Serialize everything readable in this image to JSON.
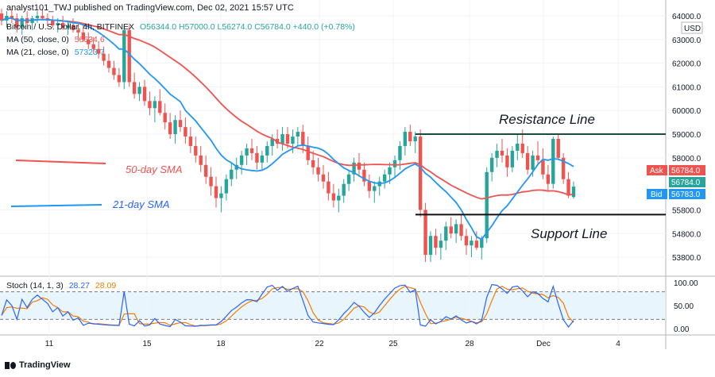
{
  "header": {
    "publisher_line": "analyst101_TWJ published on TradingView.com, Dec 02, 2021 15:57 UTC"
  },
  "legend": {
    "symbol_label": "Bitcoin / U.S. Dollar, 4h, BITFINEX",
    "ohlc": "O56344.0  H57000.0  L56274.0  C56784.0  +440.0 (+0.78%)",
    "ma50_label": "MA (50, close, 0)",
    "ma50_value": "56634.6",
    "ma21_label": "MA (21, close, 0)",
    "ma21_value": "57323.7",
    "stoch_label": "Stoch (14, 1, 3)",
    "stoch_k": "28.27",
    "stoch_d": "28.09"
  },
  "price_axis": {
    "currency": "USD",
    "ticks": [
      "64000.0",
      "63000.0",
      "62000.0",
      "61000.0",
      "60000.0",
      "59000.0",
      "58000.0",
      "56784.0",
      "55800.0",
      "54800.0",
      "53800.0"
    ],
    "ask_label": "Ask",
    "ask_value": "56784.0",
    "last_value": "56784.0",
    "bid_label": "Bid",
    "bid_value": "56783.0"
  },
  "stoch_axis": {
    "ticks": [
      "100.00",
      "50.00",
      "0.00"
    ]
  },
  "time_axis": {
    "ticks": [
      "11",
      "15",
      "18",
      "22",
      "25",
      "28",
      "Dec",
      "4"
    ]
  },
  "annotations": {
    "resistance": "Resistance Line",
    "support": "Support Line",
    "sma50": "50-day SMA",
    "sma21": "21-day SMA"
  },
  "footer": {
    "brand": "TradingView"
  },
  "colors": {
    "up": "#26a69a",
    "down": "#ef5350",
    "ma50": "#ef5350",
    "ma21": "#2196f3",
    "stoch_k": "#2962ff",
    "stoch_d": "#f57c00",
    "level_line": "#1b4b3e",
    "band": "#e3f2fd"
  },
  "chart_data": {
    "type": "candlestick",
    "symbol": "Bitcoin / U.S. Dollar",
    "timeframe": "4h",
    "ylim": [
      53200,
      64200
    ],
    "xlim_days": [
      10,
      5.5
    ],
    "resistance_level": 59000,
    "support_level": 55600,
    "candles": [
      [
        64100,
        64300,
        63600,
        63800
      ],
      [
        63800,
        64200,
        63500,
        64000
      ],
      [
        64000,
        64300,
        63700,
        63900
      ],
      [
        63900,
        64100,
        63300,
        63500
      ],
      [
        63500,
        64000,
        63200,
        63900
      ],
      [
        63900,
        64200,
        63600,
        63700
      ],
      [
        63700,
        64000,
        63400,
        63900
      ],
      [
        63900,
        64200,
        63700,
        64000
      ],
      [
        64000,
        64300,
        63800,
        63900
      ],
      [
        63900,
        64100,
        63600,
        63800
      ],
      [
        63800,
        64000,
        63500,
        63600
      ],
      [
        63600,
        63900,
        63300,
        63700
      ],
      [
        63700,
        64000,
        63400,
        63500
      ],
      [
        63500,
        63800,
        63200,
        63600
      ],
      [
        63600,
        63900,
        63300,
        63400
      ],
      [
        63400,
        63700,
        63000,
        63300
      ],
      [
        63300,
        63600,
        62900,
        63000
      ],
      [
        63000,
        63300,
        62600,
        62800
      ],
      [
        62800,
        63100,
        62400,
        62600
      ],
      [
        62600,
        62900,
        62200,
        62400
      ],
      [
        62400,
        62700,
        61900,
        62100
      ],
      [
        62100,
        62400,
        61600,
        61800
      ],
      [
        61800,
        62100,
        61300,
        61500
      ],
      [
        61500,
        61800,
        61000,
        61200
      ],
      [
        61200,
        63600,
        60900,
        63400
      ],
      [
        63400,
        63600,
        61000,
        61200
      ],
      [
        61200,
        61600,
        60500,
        60700
      ],
      [
        60700,
        61200,
        60400,
        61000
      ],
      [
        61000,
        61300,
        60200,
        60400
      ],
      [
        60400,
        60800,
        59800,
        60100
      ],
      [
        60100,
        60600,
        59500,
        60400
      ],
      [
        60400,
        60900,
        59800,
        59900
      ],
      [
        59900,
        60300,
        59200,
        59500
      ],
      [
        59500,
        59900,
        58800,
        59000
      ],
      [
        59000,
        59800,
        58600,
        59600
      ],
      [
        59600,
        60000,
        59100,
        59300
      ],
      [
        59300,
        59700,
        58600,
        58900
      ],
      [
        58900,
        59300,
        58200,
        58500
      ],
      [
        58500,
        58900,
        57800,
        58100
      ],
      [
        58100,
        58500,
        57400,
        57700
      ],
      [
        57700,
        58100,
        56900,
        57200
      ],
      [
        57200,
        57600,
        56400,
        56800
      ],
      [
        56800,
        57200,
        55900,
        56300
      ],
      [
        56300,
        56800,
        55700,
        56500
      ],
      [
        56500,
        57300,
        56200,
        57100
      ],
      [
        57100,
        57800,
        56800,
        57500
      ],
      [
        57500,
        58000,
        57100,
        57700
      ],
      [
        57700,
        58300,
        57300,
        58100
      ],
      [
        58100,
        58600,
        57700,
        58400
      ],
      [
        58400,
        58800,
        57900,
        58200
      ],
      [
        58200,
        58500,
        57500,
        57800
      ],
      [
        57800,
        58300,
        57500,
        58100
      ],
      [
        58100,
        58700,
        57800,
        58500
      ],
      [
        58500,
        59000,
        58100,
        58800
      ],
      [
        58800,
        59200,
        58400,
        58600
      ],
      [
        58600,
        59300,
        58300,
        59000
      ],
      [
        59000,
        59300,
        58400,
        58600
      ],
      [
        58600,
        59200,
        58200,
        58900
      ],
      [
        58900,
        59300,
        58500,
        59100
      ],
      [
        59100,
        59400,
        58200,
        58500
      ],
      [
        58500,
        58900,
        57700,
        57900
      ],
      [
        57900,
        58300,
        57300,
        57600
      ],
      [
        57600,
        58000,
        57000,
        57300
      ],
      [
        57300,
        57700,
        56700,
        57000
      ],
      [
        57000,
        57400,
        56200,
        56500
      ],
      [
        56500,
        56900,
        55900,
        56200
      ],
      [
        56200,
        56700,
        55700,
        56400
      ],
      [
        56400,
        57100,
        56100,
        56900
      ],
      [
        56900,
        57500,
        56600,
        57300
      ],
      [
        57300,
        58000,
        57000,
        57800
      ],
      [
        57800,
        58200,
        57200,
        57500
      ],
      [
        57500,
        57800,
        56800,
        57000
      ],
      [
        57000,
        57300,
        56300,
        56600
      ],
      [
        56600,
        57000,
        56100,
        56800
      ],
      [
        56800,
        57200,
        56400,
        57000
      ],
      [
        57000,
        57500,
        56700,
        57300
      ],
      [
        57300,
        57800,
        56900,
        57600
      ],
      [
        57600,
        58100,
        57200,
        57900
      ],
      [
        57900,
        58700,
        57500,
        58500
      ],
      [
        58500,
        59300,
        58100,
        59100
      ],
      [
        59100,
        59400,
        58500,
        58700
      ],
      [
        58700,
        59100,
        58200,
        58900
      ],
      [
        58900,
        59200,
        55500,
        55800
      ],
      [
        55800,
        56100,
        53600,
        53900
      ],
      [
        53900,
        54900,
        53600,
        54700
      ],
      [
        54700,
        55000,
        53900,
        54200
      ],
      [
        54200,
        54800,
        53700,
        54500
      ],
      [
        54500,
        55300,
        54100,
        55100
      ],
      [
        55100,
        55500,
        54600,
        54800
      ],
      [
        54800,
        55400,
        54400,
        55200
      ],
      [
        55200,
        55600,
        54500,
        54700
      ],
      [
        54700,
        55000,
        53900,
        54300
      ],
      [
        54300,
        54700,
        53800,
        54500
      ],
      [
        54500,
        54900,
        54100,
        54200
      ],
      [
        54200,
        54700,
        53700,
        54600
      ],
      [
        54600,
        57600,
        54400,
        57400
      ],
      [
        57400,
        58200,
        57000,
        58000
      ],
      [
        58000,
        58600,
        57600,
        58300
      ],
      [
        58300,
        58800,
        57800,
        58100
      ],
      [
        58100,
        58400,
        57200,
        57600
      ],
      [
        57600,
        58500,
        57400,
        58300
      ],
      [
        58300,
        59000,
        57900,
        58600
      ],
      [
        58600,
        59200,
        58000,
        58200
      ],
      [
        58200,
        58500,
        57300,
        57500
      ],
      [
        57500,
        58300,
        57200,
        58100
      ],
      [
        58100,
        58700,
        57700,
        57900
      ],
      [
        57900,
        58400,
        57100,
        57300
      ],
      [
        57300,
        57700,
        56600,
        56900
      ],
      [
        56900,
        58900,
        56700,
        58800
      ],
      [
        58800,
        59000,
        57900,
        58000
      ],
      [
        58000,
        58200,
        56900,
        57100
      ],
      [
        57100,
        57400,
        56300,
        56400
      ],
      [
        56344,
        57000,
        56274,
        56784
      ]
    ],
    "ma50": [],
    "ma21": [],
    "stoch_k": [],
    "stoch_d": [],
    "stoch_ylim": [
      0,
      100
    ],
    "stoch_levels": [
      80,
      20
    ]
  }
}
